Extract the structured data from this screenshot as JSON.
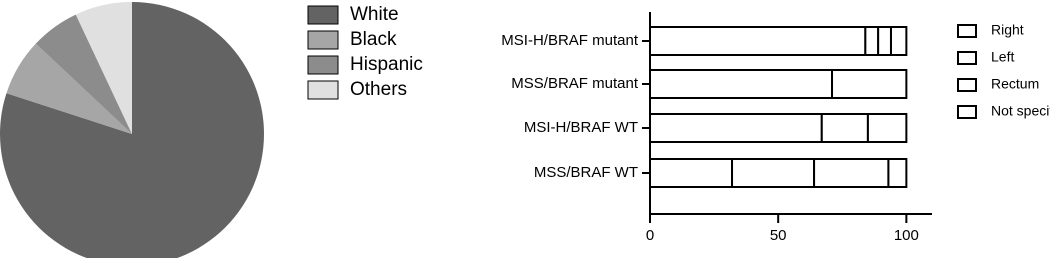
{
  "chart_data": [
    {
      "type": "pie",
      "categories": [
        "White",
        "Black",
        "Hispanic",
        "Others"
      ],
      "values": [
        80,
        7,
        6,
        7
      ],
      "colors": [
        "#636363",
        "#a6a6a6",
        "#8c8c8c",
        "#e0e0e0"
      ]
    },
    {
      "type": "hbar_stacked",
      "categories": [
        "MSI-H/BRAF mutant",
        "MSS/BRAF mutant",
        "MSI-H/BRAF WT",
        "MSS/BRAF WT"
      ],
      "series": [
        {
          "name": "Right",
          "color": "#ffffff",
          "values": [
            84,
            71,
            67,
            32
          ]
        },
        {
          "name": "Left",
          "color": "#ffffff",
          "values": [
            5,
            29,
            18,
            32
          ]
        },
        {
          "name": "Rectum",
          "color": "#ffffff",
          "values": [
            5,
            0,
            15,
            29
          ]
        },
        {
          "name": "Not specified",
          "color": "#ffffff",
          "values": [
            6,
            0,
            0,
            7
          ]
        }
      ],
      "xlim": [
        0,
        110
      ],
      "xticks": [
        0,
        50,
        100
      ]
    }
  ]
}
